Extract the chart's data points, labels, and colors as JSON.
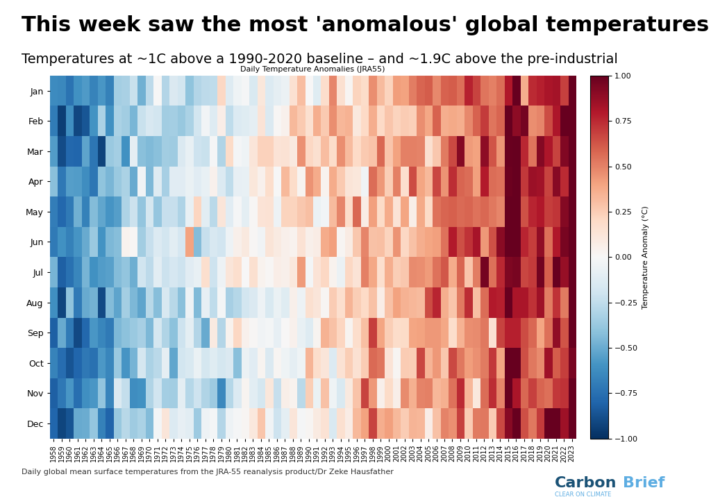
{
  "title": "This week saw the most 'anomalous' global temperatures ever recorded",
  "subtitle": "Temperatures at ~1C above a 1990-2020 baseline – and ~1.9C above the pre-industrial",
  "heatmap_title": "Daily Temperature Anomalies (JRA55)",
  "colorbar_label": "Temperature Anomaly (°C)",
  "footer_text": "Daily global mean surface temperatures from the JRA-55 reanalysis product/Dr Zeke Hausfather",
  "start_year": 1958,
  "end_year": 2023,
  "months": [
    "Jan",
    "Feb",
    "Mar",
    "Apr",
    "May",
    "Jun",
    "Jul",
    "Aug",
    "Sep",
    "Oct",
    "Nov",
    "Dec"
  ],
  "vmin": -1.0,
  "vmax": 1.0,
  "colormap": "RdBu_r",
  "background_color": "#ffffff",
  "title_color": "#000000",
  "title_fontsize": 22,
  "subtitle_fontsize": 14,
  "seed": 42
}
